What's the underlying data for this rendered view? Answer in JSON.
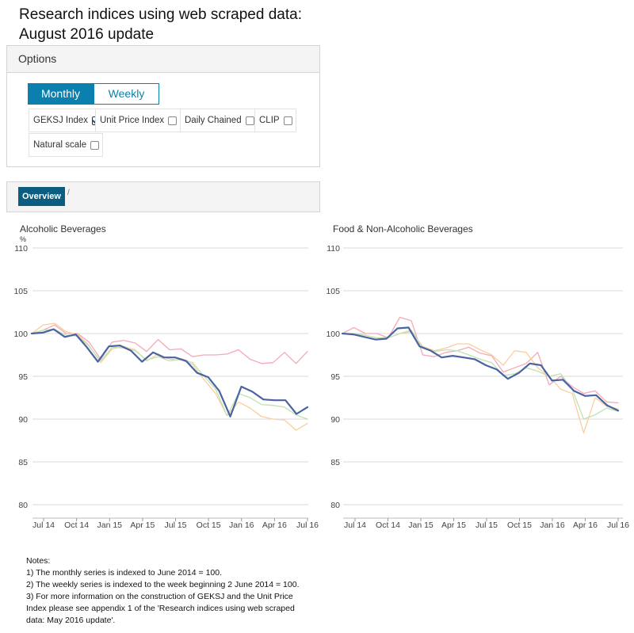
{
  "page": {
    "title_line1": "Research indices using web scraped data:",
    "title_line2": "August 2016 update"
  },
  "options": {
    "header": "Options",
    "frequency": {
      "monthly": "Monthly",
      "weekly": "Weekly",
      "selected": "Monthly"
    },
    "checkboxes": [
      {
        "label": "GEKSJ Index",
        "checked": true
      },
      {
        "label": "Unit Price Index",
        "checked": false
      },
      {
        "label": "Daily Chained",
        "checked": false
      },
      {
        "label": "CLIP",
        "checked": false
      }
    ],
    "natural_scale": {
      "label": "Natural scale",
      "checked": false
    }
  },
  "nav": {
    "overview": "Overview",
    "separator": "/"
  },
  "colors": {
    "accent": "#0b7fad",
    "geksj": "#4a63a2",
    "unit_price": "#f4a9b6",
    "daily_chained": "#f8cf9e",
    "clip": "#bfe2b3"
  },
  "chart_data": [
    {
      "type": "line",
      "title": "Alcoholic Beverages",
      "ylabel": "%",
      "ylim": [
        80,
        110
      ],
      "yticks": [
        80,
        85,
        90,
        95,
        100,
        105,
        110
      ],
      "xticks": [
        "Jul 14",
        "Oct 14",
        "Jan 15",
        "Apr 15",
        "Jul 15",
        "Oct 15",
        "Jan 16",
        "Apr 16",
        "Jul 16"
      ],
      "grid": true,
      "series": [
        {
          "key": "unit_price",
          "values": [
            100.0,
            100.4,
            101.0,
            100.0,
            100.0,
            99.0,
            97.0,
            99.0,
            99.2,
            98.9,
            97.9,
            99.3,
            98.1,
            98.2,
            97.3,
            97.5,
            97.5,
            97.6,
            98.1,
            97.0,
            96.5,
            96.6,
            97.8,
            96.5,
            97.9
          ]
        },
        {
          "key": "daily_chained",
          "values": [
            100.0,
            101.0,
            101.2,
            100.2,
            99.9,
            98.6,
            96.6,
            98.2,
            98.5,
            98.1,
            96.8,
            97.6,
            97.0,
            96.9,
            96.4,
            94.6,
            93.0,
            90.4,
            92.0,
            91.3,
            90.3,
            90.0,
            89.9,
            88.7,
            89.5
          ]
        },
        {
          "key": "clip",
          "values": [
            100.0,
            100.4,
            100.5,
            99.8,
            99.7,
            98.5,
            96.8,
            98.4,
            98.3,
            98.0,
            96.9,
            97.3,
            96.8,
            97.0,
            96.6,
            95.0,
            93.5,
            90.4,
            93.0,
            92.5,
            91.7,
            91.6,
            91.4,
            90.5,
            90.0
          ]
        },
        {
          "key": "geksj",
          "values": [
            100.0,
            100.1,
            100.5,
            99.6,
            99.9,
            98.4,
            96.7,
            98.5,
            98.6,
            98.0,
            96.7,
            97.8,
            97.2,
            97.2,
            96.8,
            95.4,
            94.9,
            93.3,
            90.3,
            93.8,
            93.2,
            92.3,
            92.2,
            92.2,
            90.6,
            91.4
          ]
        }
      ]
    },
    {
      "type": "line",
      "title": "Food & Non-Alcoholic Beverages",
      "ylim": [
        80,
        110
      ],
      "yticks": [
        80,
        85,
        90,
        95,
        100,
        105,
        110
      ],
      "xticks": [
        "Jul 14",
        "Oct 14",
        "Jan 15",
        "Apr 15",
        "Jul 15",
        "Oct 15",
        "Jan 16",
        "Apr 16",
        "Jul 16"
      ],
      "grid": true,
      "series": [
        {
          "key": "unit_price",
          "values": [
            100.0,
            100.7,
            100.0,
            100.0,
            99.5,
            101.9,
            101.5,
            97.5,
            97.3,
            97.8,
            98.0,
            98.4,
            97.7,
            97.4,
            95.5,
            96.0,
            96.5,
            97.8,
            94.0,
            95.0,
            93.8,
            93.0,
            93.3,
            92.0,
            91.9
          ]
        },
        {
          "key": "daily_chained",
          "values": [
            100.0,
            100.0,
            99.8,
            99.5,
            99.5,
            100.0,
            100.2,
            98.5,
            98.0,
            98.3,
            98.8,
            98.8,
            98.1,
            97.5,
            96.3,
            98.0,
            97.8,
            96.0,
            95.0,
            93.5,
            93.0,
            88.4,
            92.5,
            91.5,
            91.2
          ]
        },
        {
          "key": "clip",
          "values": [
            100.0,
            100.0,
            99.8,
            99.5,
            99.5,
            100.0,
            100.4,
            98.3,
            97.9,
            98.1,
            98.0,
            97.5,
            97.0,
            96.6,
            95.1,
            95.3,
            96.0,
            95.6,
            95.0,
            95.3,
            93.5,
            90.0,
            90.5,
            91.3,
            90.9
          ]
        },
        {
          "key": "geksj",
          "values": [
            100.0,
            99.9,
            99.6,
            99.3,
            99.4,
            100.6,
            100.7,
            98.5,
            98.0,
            97.2,
            97.4,
            97.2,
            97.0,
            96.3,
            95.8,
            94.7,
            95.4,
            96.5,
            96.3,
            94.5,
            94.6,
            93.3,
            92.7,
            92.8,
            91.6,
            91.0
          ]
        }
      ]
    }
  ],
  "notes": {
    "heading": "Notes:",
    "lines": [
      "1) The monthly series is indexed to June 2014 = 100.",
      "2) The weekly series is indexed to the week beginning 2 June 2014 = 100.",
      "3) For more information on the construction of GEKSJ and the Unit Price",
      "Index please see appendix 1 of the 'Research indices using web scraped",
      "data: May 2016 update'."
    ]
  }
}
